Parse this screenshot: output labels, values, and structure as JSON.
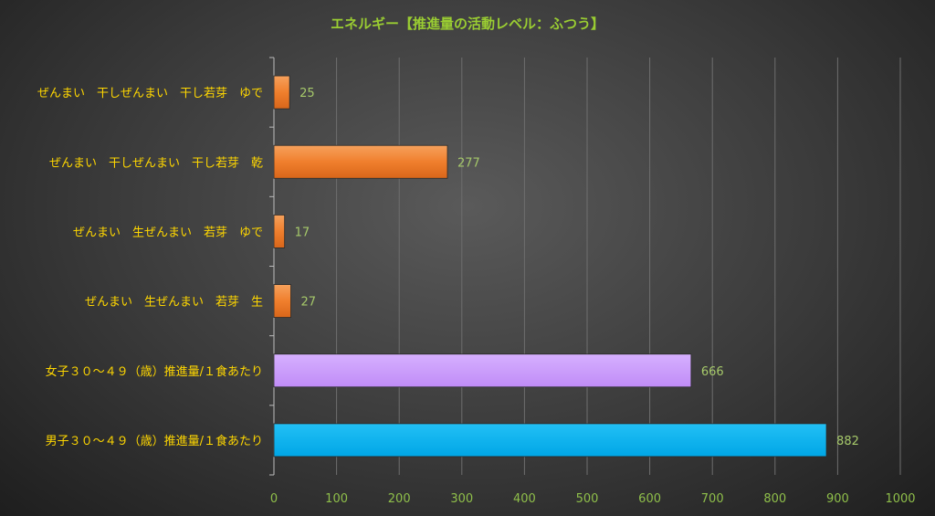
{
  "chart_data": {
    "type": "bar",
    "orientation": "horizontal",
    "title": "エネルギー【推進量の活動レベル：ふつう】",
    "categories": [
      "ぜんまい　干しぜんまい　干し若芽　ゆで",
      "ぜんまい　干しぜんまい　干し若芽　乾",
      "ぜんまい　生ぜんまい　若芽　ゆで",
      "ぜんまい　生ぜんまい　若芽　生",
      "女子３０～４９（歳）推進量/１食あたり",
      "男子３０～４９（歳）推進量/１食あたり"
    ],
    "values": [
      25,
      277,
      17,
      27,
      666,
      882
    ],
    "bar_colors": [
      "#f07f2d",
      "#f07f2d",
      "#f07f2d",
      "#f07f2d",
      "#cc99ff",
      "#00b0f0"
    ],
    "xlim": [
      0,
      1000
    ],
    "xticks": [
      0,
      100,
      200,
      300,
      400,
      500,
      600,
      700,
      800,
      900,
      1000
    ],
    "grid": true,
    "legend": "none"
  },
  "colors": {
    "title": "#9acd32",
    "category_text": "#ffd700",
    "tick_text": "#8fbf4a",
    "data_label_text": "#a6c96a"
  }
}
